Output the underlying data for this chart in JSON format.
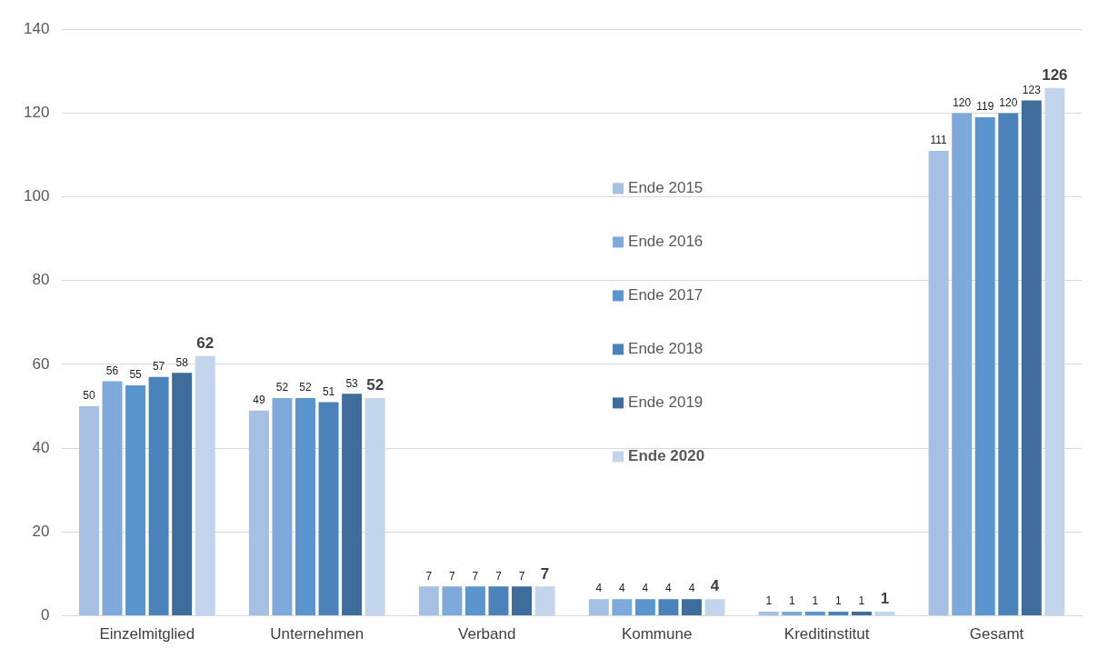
{
  "chart_data": {
    "type": "bar",
    "categories": [
      "Einzelmitglied",
      "Unternehmen",
      "Verband",
      "Kommune",
      "Kreditinstitut",
      "Gesamt"
    ],
    "series": [
      {
        "name": "Ende 2015",
        "color": "#a5c0e2",
        "values": [
          50,
          49,
          7,
          4,
          1,
          111
        ]
      },
      {
        "name": "Ende 2016",
        "color": "#7eaadb",
        "values": [
          56,
          52,
          7,
          4,
          1,
          120
        ]
      },
      {
        "name": "Ende 2017",
        "color": "#5b95cf",
        "values": [
          55,
          52,
          7,
          4,
          1,
          119
        ]
      },
      {
        "name": "Ende 2018",
        "color": "#4a82b9",
        "values": [
          57,
          51,
          7,
          4,
          1,
          120
        ]
      },
      {
        "name": "Ende 2019",
        "color": "#3e6d9c",
        "values": [
          58,
          53,
          7,
          4,
          1,
          123
        ]
      },
      {
        "name": "Ende 2020",
        "color": "#c3d5ed",
        "values": [
          62,
          52,
          7,
          4,
          1,
          126
        ]
      }
    ],
    "ylim": [
      0,
      140
    ],
    "yticks": [
      0,
      20,
      40,
      60,
      80,
      100,
      120,
      140
    ],
    "grid": "y",
    "legend": "center",
    "data_labels": true
  }
}
